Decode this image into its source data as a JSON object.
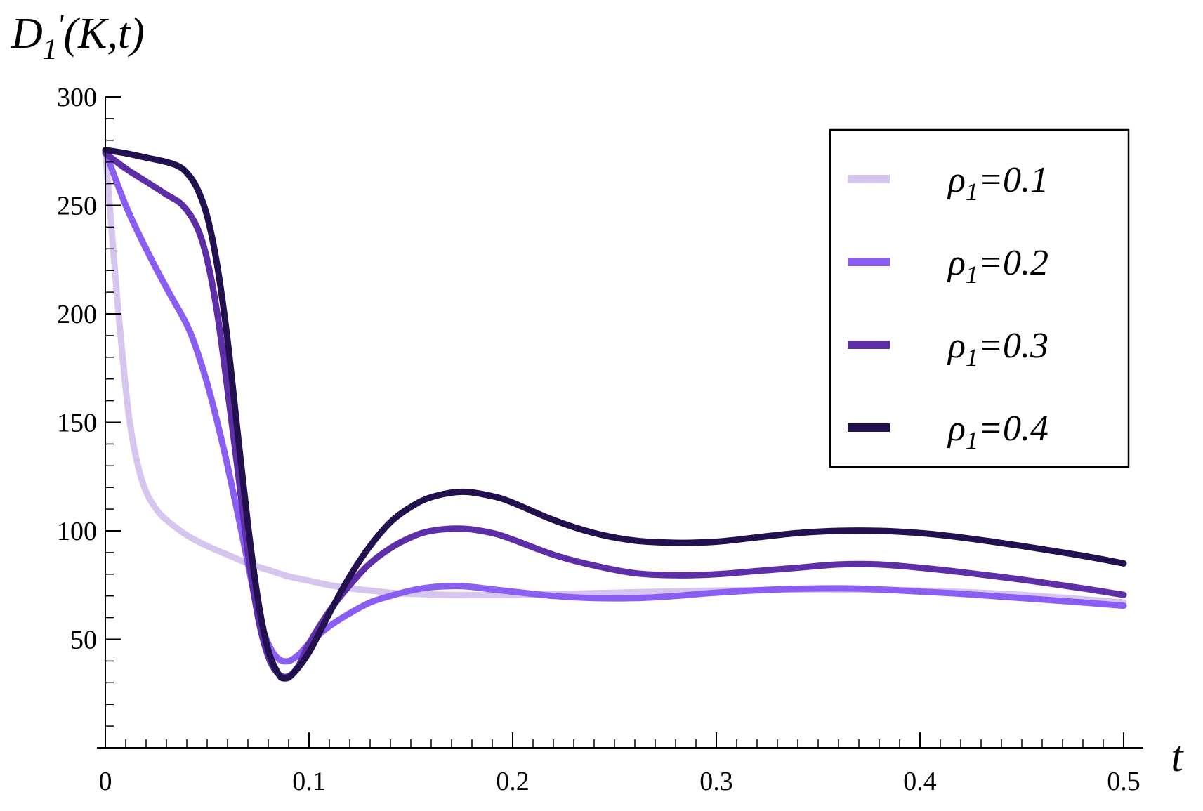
{
  "chart_data": {
    "type": "line",
    "title": "",
    "ylabel": "D1'(K,t)",
    "xlabel": "t",
    "xlim": [
      0,
      0.5
    ],
    "ylim": [
      0,
      300
    ],
    "grid": false,
    "legend_position": "top-right",
    "x_ticks": [
      0,
      0.1,
      0.2,
      0.3,
      0.4,
      0.5
    ],
    "x_tick_labels": [
      "0",
      "0.1",
      "0.2",
      "0.3",
      "0.4",
      "0.5"
    ],
    "y_ticks": [
      50,
      100,
      150,
      200,
      250,
      300
    ],
    "y_tick_labels": [
      "50",
      "100",
      "150",
      "200",
      "250",
      "300"
    ],
    "ylabel_parts": {
      "main": "D",
      "sub": "1",
      "prime": "'",
      "rest": "(K,t)"
    },
    "series": [
      {
        "name": "ρ1=0.1",
        "label_parts": {
          "greek": "ρ",
          "sub": "1",
          "rest": "=0.1"
        },
        "color": "#d6c6ef",
        "points": [
          [
            0,
            275
          ],
          [
            0.003,
            240
          ],
          [
            0.006,
            205
          ],
          [
            0.009,
            175
          ],
          [
            0.012,
            150
          ],
          [
            0.016,
            130
          ],
          [
            0.02,
            118
          ],
          [
            0.025,
            110
          ],
          [
            0.03,
            105
          ],
          [
            0.04,
            98
          ],
          [
            0.05,
            93
          ],
          [
            0.06,
            89
          ],
          [
            0.07,
            85
          ],
          [
            0.08,
            82
          ],
          [
            0.09,
            79
          ],
          [
            0.1,
            77
          ],
          [
            0.11,
            75
          ],
          [
            0.12,
            73.5
          ],
          [
            0.13,
            72.5
          ],
          [
            0.14,
            71.5
          ],
          [
            0.15,
            71
          ],
          [
            0.17,
            70.5
          ],
          [
            0.2,
            70.5
          ],
          [
            0.25,
            71.5
          ],
          [
            0.3,
            72.5
          ],
          [
            0.35,
            73
          ],
          [
            0.4,
            72.5
          ],
          [
            0.45,
            70.5
          ],
          [
            0.5,
            67
          ]
        ]
      },
      {
        "name": "ρ1=0.2",
        "label_parts": {
          "greek": "ρ",
          "sub": "1",
          "rest": "=0.2"
        },
        "color": "#8a5ef3",
        "points": [
          [
            0,
            275
          ],
          [
            0.01,
            250
          ],
          [
            0.02,
            230
          ],
          [
            0.03,
            212
          ],
          [
            0.04,
            195
          ],
          [
            0.045,
            183
          ],
          [
            0.05,
            168
          ],
          [
            0.055,
            150
          ],
          [
            0.06,
            130
          ],
          [
            0.065,
            108
          ],
          [
            0.07,
            85
          ],
          [
            0.075,
            62
          ],
          [
            0.08,
            48
          ],
          [
            0.085,
            41
          ],
          [
            0.09,
            40
          ],
          [
            0.095,
            43
          ],
          [
            0.1,
            48
          ],
          [
            0.11,
            56
          ],
          [
            0.12,
            62
          ],
          [
            0.13,
            67
          ],
          [
            0.14,
            70
          ],
          [
            0.15,
            72.5
          ],
          [
            0.16,
            74
          ],
          [
            0.175,
            74.5
          ],
          [
            0.19,
            73
          ],
          [
            0.2,
            72
          ],
          [
            0.22,
            70
          ],
          [
            0.24,
            69
          ],
          [
            0.26,
            69
          ],
          [
            0.28,
            70
          ],
          [
            0.3,
            71.5
          ],
          [
            0.33,
            73
          ],
          [
            0.36,
            73.5
          ],
          [
            0.38,
            73
          ],
          [
            0.4,
            72
          ],
          [
            0.42,
            71
          ],
          [
            0.45,
            69
          ],
          [
            0.48,
            67
          ],
          [
            0.5,
            65.5
          ]
        ]
      },
      {
        "name": "ρ1=0.3",
        "label_parts": {
          "greek": "ρ",
          "sub": "1",
          "rest": "=0.3"
        },
        "color": "#5d2ea8",
        "points": [
          [
            0,
            274
          ],
          [
            0.01,
            267
          ],
          [
            0.02,
            261
          ],
          [
            0.03,
            255
          ],
          [
            0.038,
            250
          ],
          [
            0.045,
            240
          ],
          [
            0.05,
            225
          ],
          [
            0.055,
            200
          ],
          [
            0.06,
            165
          ],
          [
            0.065,
            128
          ],
          [
            0.07,
            90
          ],
          [
            0.075,
            60
          ],
          [
            0.08,
            42
          ],
          [
            0.085,
            34
          ],
          [
            0.09,
            33
          ],
          [
            0.095,
            38
          ],
          [
            0.1,
            48
          ],
          [
            0.11,
            63
          ],
          [
            0.12,
            75
          ],
          [
            0.13,
            85
          ],
          [
            0.14,
            92
          ],
          [
            0.15,
            97
          ],
          [
            0.16,
            100
          ],
          [
            0.175,
            101
          ],
          [
            0.19,
            99
          ],
          [
            0.2,
            96
          ],
          [
            0.22,
            89
          ],
          [
            0.24,
            84
          ],
          [
            0.26,
            80.5
          ],
          [
            0.28,
            79.5
          ],
          [
            0.3,
            80
          ],
          [
            0.32,
            81.5
          ],
          [
            0.34,
            83
          ],
          [
            0.36,
            84.5
          ],
          [
            0.38,
            84.5
          ],
          [
            0.4,
            83
          ],
          [
            0.42,
            81
          ],
          [
            0.45,
            77.5
          ],
          [
            0.48,
            73.5
          ],
          [
            0.5,
            70.5
          ]
        ]
      },
      {
        "name": "ρ1=0.4",
        "label_parts": {
          "greek": "ρ",
          "sub": "1",
          "rest": "=0.4"
        },
        "color": "#22104f",
        "points": [
          [
            0,
            275.5
          ],
          [
            0.01,
            274
          ],
          [
            0.02,
            272
          ],
          [
            0.03,
            270
          ],
          [
            0.036,
            268
          ],
          [
            0.04,
            265
          ],
          [
            0.045,
            258
          ],
          [
            0.05,
            245
          ],
          [
            0.055,
            222
          ],
          [
            0.06,
            188
          ],
          [
            0.065,
            145
          ],
          [
            0.07,
            103
          ],
          [
            0.075,
            68
          ],
          [
            0.08,
            45
          ],
          [
            0.085,
            34
          ],
          [
            0.088,
            32
          ],
          [
            0.092,
            34
          ],
          [
            0.1,
            44
          ],
          [
            0.11,
            62
          ],
          [
            0.12,
            79
          ],
          [
            0.13,
            93
          ],
          [
            0.14,
            104
          ],
          [
            0.15,
            111
          ],
          [
            0.16,
            115.5
          ],
          [
            0.175,
            118
          ],
          [
            0.19,
            116
          ],
          [
            0.2,
            113
          ],
          [
            0.22,
            105
          ],
          [
            0.24,
            99
          ],
          [
            0.26,
            95.5
          ],
          [
            0.28,
            94.5
          ],
          [
            0.3,
            95
          ],
          [
            0.32,
            97
          ],
          [
            0.34,
            99
          ],
          [
            0.36,
            100
          ],
          [
            0.38,
            100
          ],
          [
            0.4,
            99
          ],
          [
            0.42,
            97
          ],
          [
            0.45,
            93
          ],
          [
            0.48,
            88.5
          ],
          [
            0.5,
            85
          ]
        ]
      }
    ]
  }
}
